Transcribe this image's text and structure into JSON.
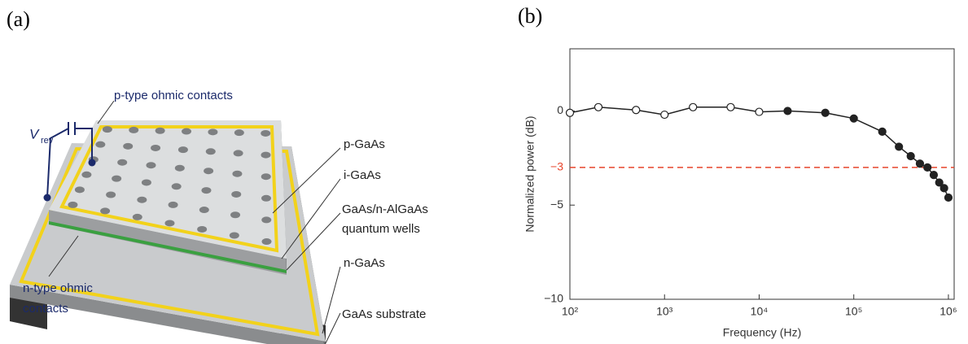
{
  "panel_a": {
    "panel_label": "(a)",
    "labels": {
      "v_symbol": "V",
      "v_subscript": "rev",
      "p_contacts": "p-type ohmic contacts",
      "p_gaas": "p-GaAs",
      "i_gaas": "i-GaAs",
      "qw_line1": "GaAs/n-AlGaAs",
      "qw_line2": "quantum wells",
      "n_gaas": "n-GaAs",
      "substrate": "GaAs substrate",
      "n_contacts_line1": "n-type ohmic",
      "n_contacts_line2": "contacts"
    }
  },
  "chart_data": {
    "type": "line",
    "panel_label": "(b)",
    "x_label": "Frequency (Hz)",
    "y_label": "Normalized power (dB)",
    "log_x": true,
    "color": "#222222",
    "x": [
      100,
      200,
      500,
      1000,
      2000,
      5000,
      10000,
      20000,
      50000,
      100000,
      200000,
      300000,
      400000,
      500000,
      600000,
      700000,
      800000,
      900000,
      1000000
    ],
    "values": [
      -0.1,
      0.2,
      0.05,
      -0.2,
      0.2,
      0.2,
      -0.05,
      0,
      -0.1,
      -0.4,
      -1.1,
      -1.9,
      -2.4,
      -2.8,
      -3.0,
      -3.4,
      -3.8,
      -4.1,
      -4.6
    ],
    "marker_fills": [
      "#ffffff",
      "#ffffff",
      "#ffffff",
      "#ffffff",
      "#ffffff",
      "#ffffff",
      "#ffffff",
      "#222222",
      "#222222",
      "#222222",
      "#222222",
      "#222222",
      "#222222",
      "#222222",
      "#222222",
      "#222222",
      "#222222",
      "#222222",
      "#222222"
    ],
    "xlim": [
      100,
      1150000
    ],
    "xticks": [
      {
        "value": 100,
        "label": "10²"
      },
      {
        "value": 1000,
        "label": "10³"
      },
      {
        "value": 10000,
        "label": "10⁴"
      },
      {
        "value": 100000,
        "label": "10⁵"
      },
      {
        "value": 1000000,
        "label": "10⁶"
      }
    ],
    "ylim": [
      -10,
      3.3
    ],
    "yticks": [
      0,
      {
        "value": -5,
        "label": "−5"
      },
      {
        "value": -10,
        "label": "−10"
      }
    ],
    "hline": {
      "value": -3,
      "label": "−3",
      "color": "#e8452c"
    }
  }
}
